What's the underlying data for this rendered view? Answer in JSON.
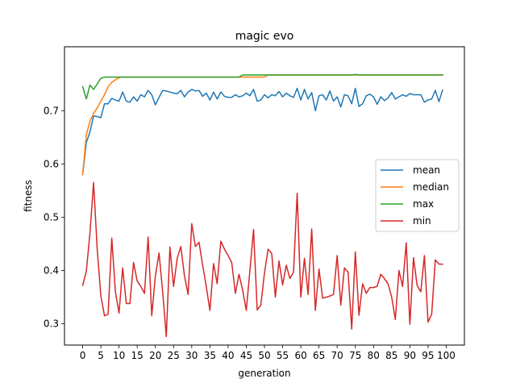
{
  "chart_data": {
    "type": "line",
    "title": "magic evo",
    "xlabel": "generation",
    "ylabel": "fitness",
    "xlim": [
      -5,
      105
    ],
    "ylim": [
      0.26,
      0.82
    ],
    "xticks": [
      0,
      5,
      10,
      15,
      20,
      25,
      30,
      35,
      40,
      45,
      50,
      55,
      60,
      65,
      70,
      75,
      80,
      85,
      90,
      95,
      100
    ],
    "yticks": [
      0.3,
      0.4,
      0.5,
      0.6,
      0.7
    ],
    "legend_position": "center-right",
    "grid": false,
    "series": [
      {
        "name": "mean",
        "color": "#1f77b4",
        "values": [
          0.58,
          0.64,
          0.66,
          0.69,
          0.689,
          0.687,
          0.713,
          0.713,
          0.723,
          0.72,
          0.718,
          0.735,
          0.718,
          0.716,
          0.726,
          0.718,
          0.73,
          0.726,
          0.738,
          0.73,
          0.711,
          0.725,
          0.738,
          0.737,
          0.735,
          0.733,
          0.732,
          0.738,
          0.726,
          0.735,
          0.74,
          0.737,
          0.738,
          0.727,
          0.733,
          0.72,
          0.735,
          0.722,
          0.735,
          0.727,
          0.725,
          0.725,
          0.73,
          0.726,
          0.728,
          0.733,
          0.728,
          0.74,
          0.718,
          0.72,
          0.73,
          0.724,
          0.73,
          0.728,
          0.736,
          0.726,
          0.733,
          0.728,
          0.725,
          0.742,
          0.72,
          0.74,
          0.722,
          0.734,
          0.7,
          0.728,
          0.73,
          0.72,
          0.737,
          0.718,
          0.726,
          0.707,
          0.73,
          0.728,
          0.713,
          0.742,
          0.708,
          0.713,
          0.728,
          0.731,
          0.726,
          0.712,
          0.726,
          0.719,
          0.724,
          0.734,
          0.722,
          0.726,
          0.73,
          0.727,
          0.732,
          0.73,
          0.73,
          0.73,
          0.716,
          0.72,
          0.722,
          0.738,
          0.717,
          0.739
        ]
      },
      {
        "name": "median",
        "color": "#ff7f0e",
        "values": [
          0.58,
          0.655,
          0.68,
          0.695,
          0.705,
          0.718,
          0.73,
          0.745,
          0.753,
          0.758,
          0.762,
          0.763,
          0.763,
          0.763,
          0.763,
          0.763,
          0.763,
          0.763,
          0.763,
          0.763,
          0.763,
          0.763,
          0.763,
          0.763,
          0.763,
          0.763,
          0.763,
          0.763,
          0.763,
          0.763,
          0.763,
          0.763,
          0.763,
          0.763,
          0.763,
          0.763,
          0.763,
          0.763,
          0.763,
          0.763,
          0.763,
          0.763,
          0.763,
          0.763,
          0.763,
          0.763,
          0.763,
          0.763,
          0.763,
          0.763,
          0.763,
          0.767,
          0.767,
          0.767,
          0.767,
          0.767,
          0.767,
          0.767,
          0.767,
          0.767,
          0.767,
          0.767,
          0.767,
          0.767,
          0.767,
          0.767,
          0.767,
          0.767,
          0.767,
          0.767,
          0.767,
          0.767,
          0.767,
          0.767,
          0.767,
          0.767,
          0.767,
          0.767,
          0.767,
          0.767,
          0.767,
          0.767,
          0.767,
          0.767,
          0.767,
          0.767,
          0.767,
          0.767,
          0.767,
          0.767,
          0.767,
          0.767,
          0.767,
          0.767,
          0.767,
          0.767,
          0.767,
          0.767,
          0.767,
          0.767
        ]
      },
      {
        "name": "max",
        "color": "#2ca02c",
        "values": [
          0.745,
          0.722,
          0.748,
          0.74,
          0.75,
          0.761,
          0.763,
          0.763,
          0.763,
          0.763,
          0.763,
          0.763,
          0.763,
          0.763,
          0.763,
          0.763,
          0.763,
          0.763,
          0.763,
          0.763,
          0.763,
          0.763,
          0.763,
          0.763,
          0.763,
          0.763,
          0.763,
          0.763,
          0.763,
          0.763,
          0.763,
          0.763,
          0.763,
          0.763,
          0.763,
          0.763,
          0.763,
          0.763,
          0.763,
          0.763,
          0.763,
          0.763,
          0.763,
          0.763,
          0.767,
          0.767,
          0.767,
          0.767,
          0.767,
          0.767,
          0.767,
          0.767,
          0.767,
          0.767,
          0.767,
          0.767,
          0.767,
          0.767,
          0.767,
          0.767,
          0.767,
          0.767,
          0.767,
          0.767,
          0.767,
          0.767,
          0.767,
          0.767,
          0.767,
          0.767,
          0.767,
          0.767,
          0.767,
          0.767,
          0.767,
          0.768,
          0.767,
          0.767,
          0.767,
          0.767,
          0.767,
          0.767,
          0.767,
          0.767,
          0.767,
          0.767,
          0.767,
          0.767,
          0.767,
          0.767,
          0.767,
          0.767,
          0.767,
          0.767,
          0.767,
          0.767,
          0.767,
          0.767,
          0.767,
          0.767
        ]
      },
      {
        "name": "min",
        "color": "#d62728",
        "values": [
          0.372,
          0.398,
          0.47,
          0.565,
          0.44,
          0.352,
          0.315,
          0.318,
          0.461,
          0.36,
          0.32,
          0.405,
          0.338,
          0.338,
          0.415,
          0.38,
          0.37,
          0.357,
          0.463,
          0.315,
          0.39,
          0.433,
          0.36,
          0.276,
          0.444,
          0.37,
          0.423,
          0.445,
          0.39,
          0.355,
          0.488,
          0.445,
          0.453,
          0.41,
          0.37,
          0.325,
          0.413,
          0.375,
          0.455,
          0.44,
          0.428,
          0.415,
          0.357,
          0.393,
          0.363,
          0.325,
          0.4,
          0.477,
          0.326,
          0.335,
          0.395,
          0.44,
          0.432,
          0.35,
          0.418,
          0.373,
          0.41,
          0.385,
          0.397,
          0.545,
          0.35,
          0.423,
          0.355,
          0.478,
          0.325,
          0.403,
          0.348,
          0.35,
          0.352,
          0.355,
          0.428,
          0.335,
          0.405,
          0.397,
          0.29,
          0.435,
          0.316,
          0.375,
          0.357,
          0.368,
          0.368,
          0.37,
          0.393,
          0.385,
          0.375,
          0.35,
          0.308,
          0.4,
          0.37,
          0.452,
          0.299,
          0.424,
          0.372,
          0.36,
          0.428,
          0.303,
          0.318,
          0.42,
          0.412,
          0.412
        ]
      }
    ]
  }
}
